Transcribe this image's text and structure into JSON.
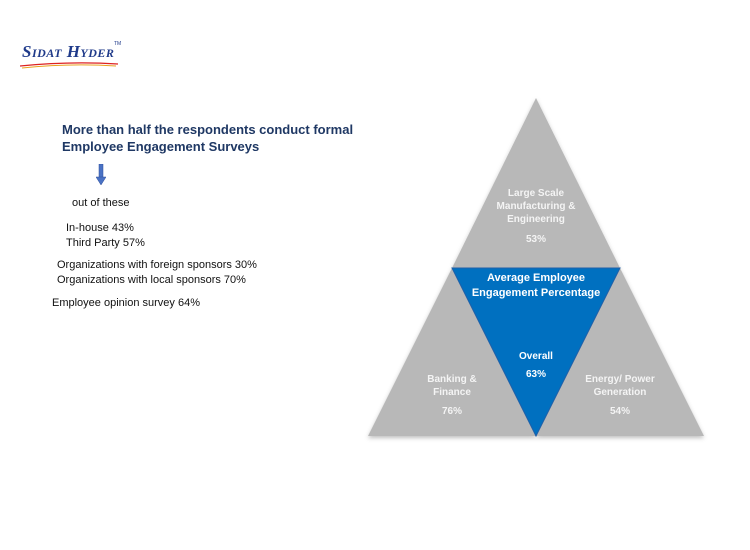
{
  "logo": {
    "text": "Sidat Hyder",
    "tm": "TM"
  },
  "headline": "More than half the respondents conduct formal Employee Engagement Surveys",
  "stats": {
    "out_of_these": "out of these",
    "in_house": "In-house 43%",
    "third_party": "Third Party 57%",
    "foreign_sponsors": "Organizations with foreign sponsors 30%",
    "local_sponsors": "Organizations with local sponsors 70%",
    "opinion_survey": "Employee opinion survey 64%"
  },
  "pyramid": {
    "center_title": "Average Employee Engagement Percentage",
    "top": {
      "label": "Large Scale Manufacturing & Engineering",
      "value": "53%"
    },
    "center": {
      "label": "Overall",
      "value": "63%"
    },
    "left": {
      "label": "Banking & Finance",
      "value": "76%"
    },
    "right": {
      "label": "Energy/ Power Generation",
      "value": "54%"
    },
    "colors": {
      "gray": "#b8b8b8",
      "blue": "#0070c0",
      "blue_edge": "#1f5fa8"
    }
  }
}
